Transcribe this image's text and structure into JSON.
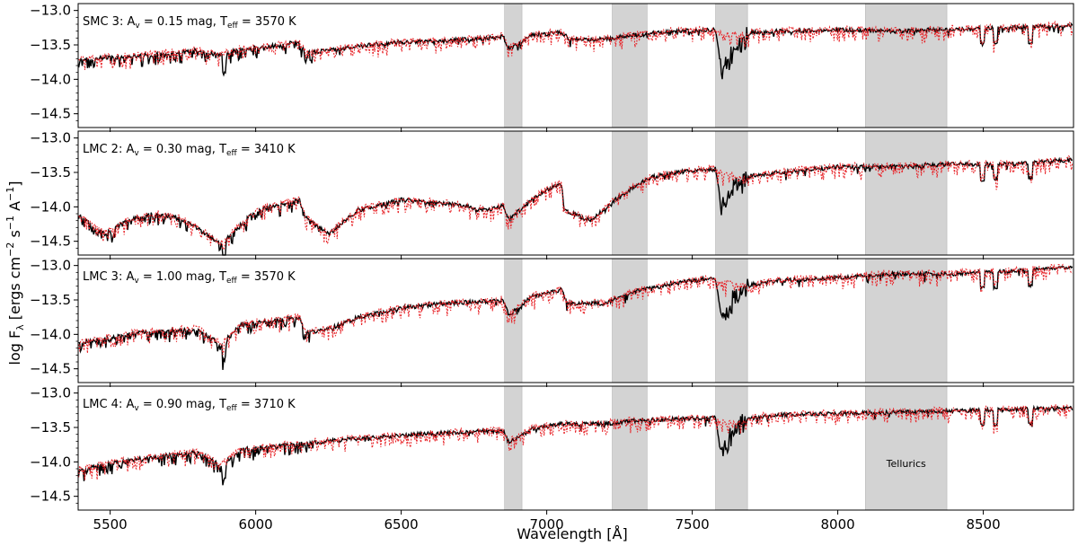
{
  "figure": {
    "xlabel": "Wavelength [Å]",
    "ylabel": "log F",
    "ylabel_sub": "λ",
    "ylabel_units_open": " [ergs cm",
    "ylabel_exp1": "−2",
    "ylabel_mid": " s",
    "ylabel_exp2": "−1",
    "ylabel_mid2": " A",
    "ylabel_exp3": "−1",
    "ylabel_close": "]",
    "tellurics_label": "Tellurics"
  },
  "chart_data": {
    "type": "line",
    "xlim": [
      5390,
      8810
    ],
    "ylim": [
      -14.7,
      -12.9
    ],
    "x_ticks": [
      5500,
      6000,
      6500,
      7000,
      7500,
      8000,
      8500
    ],
    "x_tick_labels": [
      "5500",
      "6000",
      "6500",
      "7000",
      "7500",
      "8000",
      "8500"
    ],
    "y_ticks": [
      -13.0,
      -13.5,
      -14.0,
      -14.5
    ],
    "y_tick_labels": [
      "−13.0",
      "−13.5",
      "−14.0",
      "−14.5"
    ],
    "grid": false,
    "shaded_regions": [
      [
        6855,
        6915
      ],
      [
        7225,
        7345
      ],
      [
        7580,
        7690
      ],
      [
        8095,
        8375
      ]
    ],
    "colors": {
      "observed": "#000000",
      "model": "#e8262b",
      "shade": "#d3d3d3"
    },
    "panels": [
      {
        "name": "SMC 3",
        "av": "0.15",
        "teff": "3570",
        "knots": {
          "x": [
            5400,
            5500,
            5600,
            5700,
            5800,
            5880,
            5950,
            6050,
            6150,
            6170,
            6250,
            6350,
            6500,
            6650,
            6800,
            6850,
            6870,
            6950,
            7050,
            7080,
            7200,
            7300,
            7450,
            7580,
            7600,
            7650,
            7700,
            7800,
            8000,
            8200,
            8400,
            8600,
            8800
          ],
          "y": [
            -13.72,
            -13.68,
            -13.66,
            -13.62,
            -13.58,
            -13.65,
            -13.55,
            -13.52,
            -13.46,
            -13.62,
            -13.58,
            -13.52,
            -13.46,
            -13.44,
            -13.4,
            -13.38,
            -13.55,
            -13.36,
            -13.32,
            -13.42,
            -13.42,
            -13.36,
            -13.3,
            -13.28,
            -13.88,
            -13.6,
            -13.32,
            -13.3,
            -13.28,
            -13.3,
            -13.27,
            -13.25,
            -13.22
          ]
        }
      },
      {
        "name": "LMC 2",
        "av": "0.30",
        "teff": "3410",
        "knots": {
          "x": [
            5400,
            5480,
            5560,
            5650,
            5750,
            5850,
            5880,
            6000,
            6150,
            6170,
            6250,
            6350,
            6500,
            6650,
            6800,
            6850,
            6870,
            6950,
            7050,
            7060,
            7150,
            7250,
            7350,
            7450,
            7580,
            7600,
            7650,
            7700,
            7800,
            8000,
            8200,
            8400,
            8600,
            8800
          ],
          "y": [
            -14.15,
            -14.4,
            -14.2,
            -14.1,
            -14.18,
            -14.45,
            -14.55,
            -14.05,
            -13.9,
            -14.15,
            -14.4,
            -14.05,
            -13.9,
            -13.95,
            -14.05,
            -13.98,
            -14.2,
            -13.88,
            -13.65,
            -14.05,
            -14.2,
            -13.85,
            -13.58,
            -13.5,
            -13.45,
            -13.98,
            -13.72,
            -13.55,
            -13.5,
            -13.42,
            -13.42,
            -13.38,
            -13.38,
            -13.32
          ]
        }
      },
      {
        "name": "LMC 3",
        "av": "1.00",
        "teff": "3570",
        "knots": {
          "x": [
            5400,
            5500,
            5600,
            5700,
            5800,
            5880,
            5950,
            6050,
            6150,
            6170,
            6250,
            6350,
            6500,
            6650,
            6800,
            6850,
            6870,
            6950,
            7050,
            7070,
            7200,
            7300,
            7450,
            7580,
            7600,
            7650,
            7700,
            7800,
            8000,
            8200,
            8400,
            8600,
            8800
          ],
          "y": [
            -14.12,
            -14.05,
            -13.98,
            -13.95,
            -13.92,
            -14.15,
            -13.86,
            -13.8,
            -13.75,
            -13.98,
            -13.92,
            -13.76,
            -13.62,
            -13.55,
            -13.52,
            -13.5,
            -13.72,
            -13.45,
            -13.35,
            -13.55,
            -13.55,
            -13.38,
            -13.25,
            -13.18,
            -13.78,
            -13.45,
            -13.28,
            -13.22,
            -13.18,
            -13.12,
            -13.12,
            -13.08,
            -13.02
          ]
        }
      },
      {
        "name": "LMC 4",
        "av": "0.90",
        "teff": "3710",
        "knots": {
          "x": [
            5400,
            5500,
            5600,
            5700,
            5800,
            5880,
            5950,
            6050,
            6150,
            6250,
            6350,
            6500,
            6650,
            6800,
            6850,
            6870,
            6950,
            7050,
            7200,
            7300,
            7450,
            7580,
            7600,
            7650,
            7700,
            7800,
            8000,
            8200,
            8400,
            8600,
            8800
          ],
          "y": [
            -14.12,
            -14.02,
            -13.96,
            -13.9,
            -13.86,
            -14.05,
            -13.82,
            -13.78,
            -13.74,
            -13.7,
            -13.66,
            -13.62,
            -13.58,
            -13.55,
            -13.55,
            -13.72,
            -13.52,
            -13.45,
            -13.45,
            -13.4,
            -13.38,
            -13.36,
            -13.92,
            -13.52,
            -13.36,
            -13.32,
            -13.3,
            -13.28,
            -13.26,
            -13.24,
            -13.22
          ]
        }
      }
    ]
  }
}
